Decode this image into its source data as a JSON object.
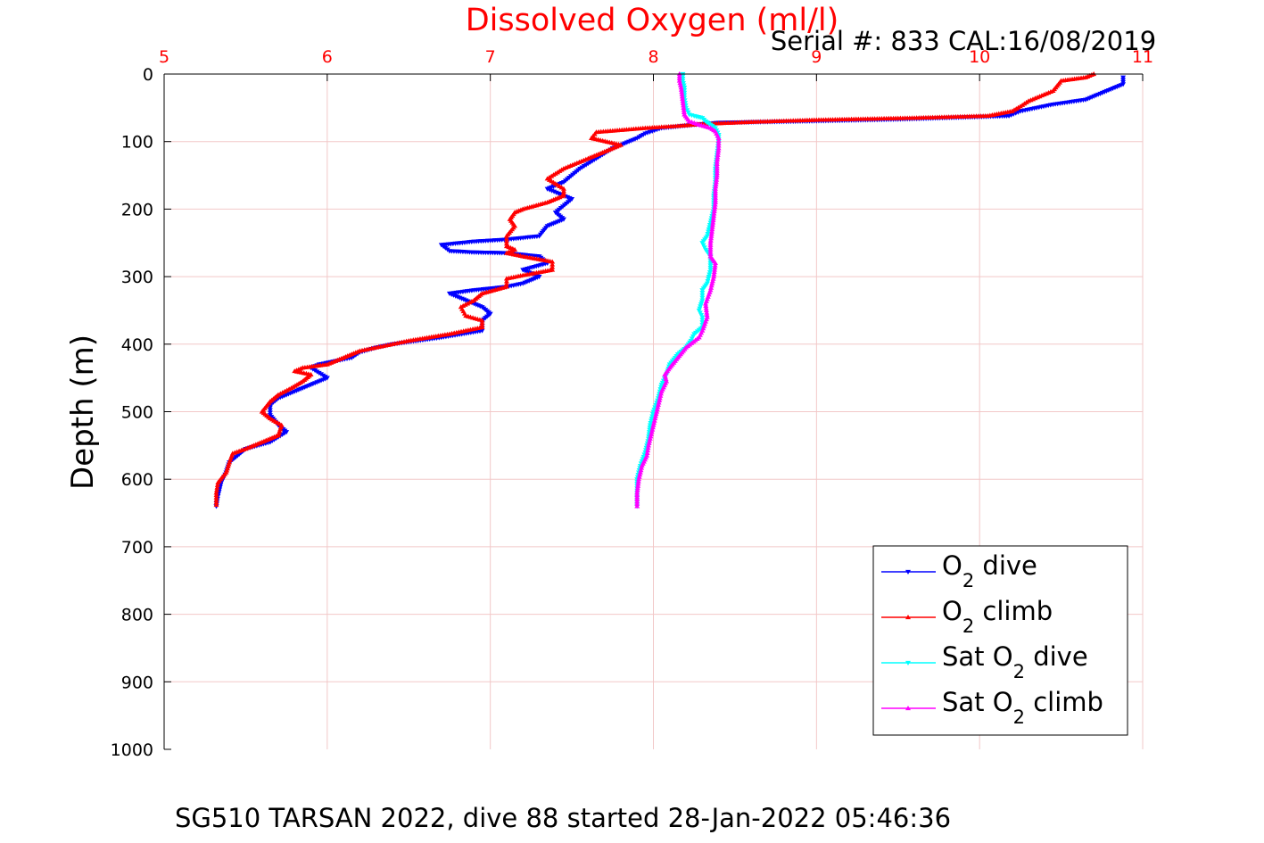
{
  "chart_data": {
    "type": "line",
    "title": "Dissolved Oxygen (ml/l)",
    "subtitle": "Serial #: 833  CAL:16/08/2019",
    "caption": "SG510 TARSAN 2022, dive 88 started 28-Jan-2022 05:46:36",
    "xlabel": "",
    "ylabel": "Depth (m)",
    "xlim": [
      5,
      11
    ],
    "ylim": [
      0,
      1000
    ],
    "y_reversed": true,
    "x_axis_position": "top",
    "x_ticks": [
      "5",
      "6",
      "7",
      "8",
      "9",
      "10",
      "11"
    ],
    "y_ticks": [
      "0",
      "100",
      "200",
      "300",
      "400",
      "500",
      "600",
      "700",
      "800",
      "900",
      "1000"
    ],
    "grid": true,
    "legend_position": "bottom-right",
    "colors": {
      "title": "#ff0000",
      "x_ticks": "#ff0000",
      "grid": "#f2c8c8",
      "axis": "#000000"
    },
    "legend": [
      {
        "label_main": "O",
        "label_sub": "2",
        "label_tail": " dive",
        "color": "#0000ff",
        "marker": "down"
      },
      {
        "label_main": "O",
        "label_sub": "2",
        "label_tail": " climb",
        "color": "#ff0000",
        "marker": "up"
      },
      {
        "label_main": "Sat O",
        "label_sub": "2",
        "label_tail": " dive",
        "color": "#00ffff",
        "marker": "down"
      },
      {
        "label_main": "Sat O",
        "label_sub": "2",
        "label_tail": " climb",
        "color": "#ff00ff",
        "marker": "up"
      }
    ],
    "series": [
      {
        "name": "O2 dive",
        "color": "#0000ff",
        "marker": "down",
        "points": [
          [
            10.88,
            5
          ],
          [
            10.88,
            15
          ],
          [
            10.83,
            20
          ],
          [
            10.65,
            38
          ],
          [
            10.45,
            45
          ],
          [
            10.25,
            55
          ],
          [
            10.18,
            62
          ],
          [
            9.9,
            64
          ],
          [
            9.5,
            67
          ],
          [
            8.9,
            70
          ],
          [
            8.4,
            72
          ],
          [
            8.25,
            75
          ],
          [
            8.05,
            80
          ],
          [
            7.95,
            88
          ],
          [
            7.9,
            95
          ],
          [
            7.85,
            100
          ],
          [
            7.75,
            110
          ],
          [
            7.65,
            125
          ],
          [
            7.55,
            140
          ],
          [
            7.45,
            160
          ],
          [
            7.35,
            170
          ],
          [
            7.5,
            185
          ],
          [
            7.4,
            205
          ],
          [
            7.45,
            215
          ],
          [
            7.35,
            225
          ],
          [
            7.3,
            240
          ],
          [
            7.1,
            245
          ],
          [
            6.9,
            248
          ],
          [
            6.7,
            253
          ],
          [
            6.75,
            262
          ],
          [
            6.9,
            264
          ],
          [
            7.1,
            265
          ],
          [
            7.3,
            270
          ],
          [
            7.35,
            280
          ],
          [
            7.2,
            290
          ],
          [
            7.3,
            300
          ],
          [
            7.2,
            310
          ],
          [
            7.1,
            315
          ],
          [
            6.9,
            320
          ],
          [
            6.75,
            325
          ],
          [
            6.85,
            335
          ],
          [
            6.95,
            345
          ],
          [
            7.0,
            355
          ],
          [
            6.95,
            365
          ],
          [
            6.95,
            380
          ],
          [
            6.7,
            390
          ],
          [
            6.4,
            400
          ],
          [
            6.3,
            405
          ],
          [
            6.2,
            412
          ],
          [
            6.15,
            420
          ],
          [
            5.95,
            430
          ],
          [
            5.9,
            435
          ],
          [
            6.0,
            450
          ],
          [
            5.9,
            460
          ],
          [
            5.8,
            470
          ],
          [
            5.7,
            480
          ],
          [
            5.65,
            490
          ],
          [
            5.65,
            505
          ],
          [
            5.7,
            520
          ],
          [
            5.75,
            530
          ],
          [
            5.65,
            545
          ],
          [
            5.5,
            555
          ],
          [
            5.45,
            565
          ],
          [
            5.4,
            575
          ],
          [
            5.38,
            590
          ],
          [
            5.35,
            605
          ],
          [
            5.33,
            625
          ],
          [
            5.32,
            640
          ]
        ]
      },
      {
        "name": "O2 climb",
        "color": "#ff0000",
        "marker": "up",
        "points": [
          [
            10.7,
            0
          ],
          [
            10.65,
            5
          ],
          [
            10.5,
            10
          ],
          [
            10.45,
            25
          ],
          [
            10.3,
            40
          ],
          [
            10.25,
            48
          ],
          [
            10.2,
            55
          ],
          [
            10.05,
            62
          ],
          [
            9.6,
            65
          ],
          [
            9.0,
            68
          ],
          [
            8.6,
            71
          ],
          [
            8.3,
            74
          ],
          [
            8.15,
            77
          ],
          [
            7.95,
            80
          ],
          [
            7.85,
            82
          ],
          [
            7.75,
            84
          ],
          [
            7.65,
            86
          ],
          [
            7.62,
            95
          ],
          [
            7.8,
            105
          ],
          [
            7.7,
            115
          ],
          [
            7.6,
            125
          ],
          [
            7.45,
            140
          ],
          [
            7.35,
            155
          ],
          [
            7.45,
            170
          ],
          [
            7.45,
            180
          ],
          [
            7.35,
            190
          ],
          [
            7.2,
            200
          ],
          [
            7.15,
            205
          ],
          [
            7.12,
            215
          ],
          [
            7.15,
            225
          ],
          [
            7.1,
            240
          ],
          [
            7.1,
            255
          ],
          [
            7.15,
            260
          ],
          [
            7.1,
            265
          ],
          [
            7.2,
            270
          ],
          [
            7.38,
            278
          ],
          [
            7.38,
            290
          ],
          [
            7.2,
            298
          ],
          [
            7.1,
            303
          ],
          [
            7.1,
            315
          ],
          [
            6.95,
            325
          ],
          [
            6.9,
            335
          ],
          [
            6.82,
            345
          ],
          [
            6.85,
            358
          ],
          [
            6.95,
            365
          ],
          [
            6.95,
            375
          ],
          [
            6.75,
            385
          ],
          [
            6.5,
            395
          ],
          [
            6.3,
            405
          ],
          [
            6.2,
            410
          ],
          [
            6.1,
            420
          ],
          [
            6.0,
            430
          ],
          [
            5.85,
            435
          ],
          [
            5.8,
            440
          ],
          [
            5.9,
            445
          ],
          [
            5.85,
            455
          ],
          [
            5.78,
            465
          ],
          [
            5.7,
            475
          ],
          [
            5.65,
            485
          ],
          [
            5.6,
            500
          ],
          [
            5.65,
            510
          ],
          [
            5.72,
            520
          ],
          [
            5.7,
            535
          ],
          [
            5.6,
            545
          ],
          [
            5.5,
            555
          ],
          [
            5.42,
            562
          ],
          [
            5.4,
            575
          ],
          [
            5.38,
            590
          ],
          [
            5.33,
            605
          ],
          [
            5.32,
            620
          ],
          [
            5.32,
            638
          ]
        ]
      },
      {
        "name": "Sat O2 dive",
        "color": "#00ffff",
        "marker": "down",
        "points": [
          [
            8.18,
            0
          ],
          [
            8.18,
            10
          ],
          [
            8.19,
            20
          ],
          [
            8.19,
            35
          ],
          [
            8.2,
            50
          ],
          [
            8.22,
            60
          ],
          [
            8.25,
            62
          ],
          [
            8.3,
            65
          ],
          [
            8.32,
            70
          ],
          [
            8.35,
            75
          ],
          [
            8.38,
            80
          ],
          [
            8.4,
            90
          ],
          [
            8.4,
            100
          ],
          [
            8.39,
            120
          ],
          [
            8.38,
            140
          ],
          [
            8.38,
            160
          ],
          [
            8.37,
            180
          ],
          [
            8.37,
            200
          ],
          [
            8.35,
            220
          ],
          [
            8.33,
            240
          ],
          [
            8.3,
            250
          ],
          [
            8.32,
            260
          ],
          [
            8.35,
            270
          ],
          [
            8.35,
            290
          ],
          [
            8.33,
            310
          ],
          [
            8.3,
            320
          ],
          [
            8.3,
            335
          ],
          [
            8.28,
            350
          ],
          [
            8.3,
            360
          ],
          [
            8.3,
            375
          ],
          [
            8.25,
            385
          ],
          [
            8.23,
            395
          ],
          [
            8.2,
            405
          ],
          [
            8.15,
            415
          ],
          [
            8.1,
            430
          ],
          [
            8.08,
            445
          ],
          [
            8.05,
            460
          ],
          [
            8.03,
            480
          ],
          [
            8.0,
            500
          ],
          [
            7.98,
            520
          ],
          [
            7.97,
            540
          ],
          [
            7.95,
            560
          ],
          [
            7.92,
            580
          ],
          [
            7.9,
            600
          ],
          [
            7.9,
            620
          ],
          [
            7.9,
            640
          ]
        ]
      },
      {
        "name": "Sat O2 climb",
        "color": "#ff00ff",
        "marker": "up",
        "points": [
          [
            8.16,
            0
          ],
          [
            8.16,
            10
          ],
          [
            8.17,
            20
          ],
          [
            8.18,
            40
          ],
          [
            8.19,
            60
          ],
          [
            8.22,
            70
          ],
          [
            8.28,
            75
          ],
          [
            8.35,
            80
          ],
          [
            8.38,
            85
          ],
          [
            8.4,
            95
          ],
          [
            8.4,
            110
          ],
          [
            8.39,
            130
          ],
          [
            8.39,
            150
          ],
          [
            8.38,
            170
          ],
          [
            8.38,
            190
          ],
          [
            8.37,
            210
          ],
          [
            8.36,
            230
          ],
          [
            8.35,
            250
          ],
          [
            8.35,
            270
          ],
          [
            8.38,
            280
          ],
          [
            8.37,
            300
          ],
          [
            8.35,
            320
          ],
          [
            8.32,
            340
          ],
          [
            8.33,
            360
          ],
          [
            8.3,
            380
          ],
          [
            8.28,
            390
          ],
          [
            8.2,
            405
          ],
          [
            8.15,
            420
          ],
          [
            8.1,
            435
          ],
          [
            8.07,
            445
          ],
          [
            8.08,
            455
          ],
          [
            8.05,
            470
          ],
          [
            8.03,
            490
          ],
          [
            8.01,
            510
          ],
          [
            7.99,
            530
          ],
          [
            7.97,
            550
          ],
          [
            7.96,
            565
          ],
          [
            7.93,
            580
          ],
          [
            7.91,
            600
          ],
          [
            7.9,
            620
          ],
          [
            7.9,
            640
          ]
        ]
      }
    ]
  }
}
